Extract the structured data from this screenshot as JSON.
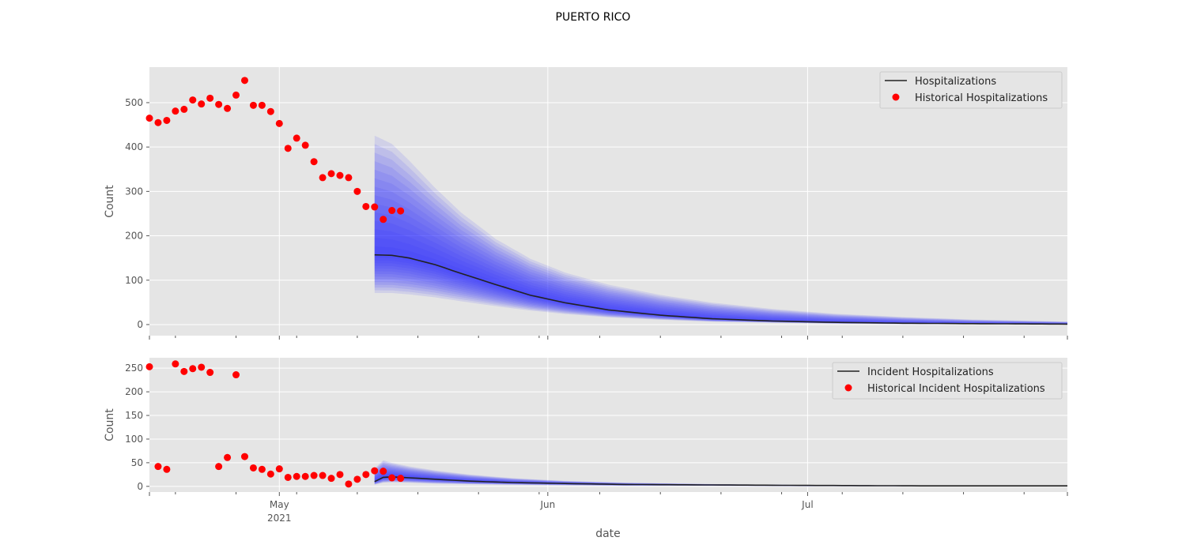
{
  "figure": {
    "title": "PUERTO RICO",
    "xlabel": "date"
  },
  "chart_data": [
    {
      "type": "line",
      "ylabel": "Count",
      "ylim": [
        -25,
        580
      ],
      "yticks": [
        0,
        100,
        200,
        300,
        400,
        500
      ],
      "grid": true,
      "legend_position": "top-right",
      "legend": [
        "Hospitalizations",
        "Historical Hospitalizations"
      ],
      "historical": {
        "name": "Historical Hospitalizations",
        "color": "#ff0000",
        "dates": [
          "2021-04-16",
          "2021-04-17",
          "2021-04-18",
          "2021-04-19",
          "2021-04-20",
          "2021-04-21",
          "2021-04-22",
          "2021-04-23",
          "2021-04-24",
          "2021-04-25",
          "2021-04-26",
          "2021-04-27",
          "2021-04-28",
          "2021-04-29",
          "2021-04-30",
          "2021-05-01",
          "2021-05-02",
          "2021-05-03",
          "2021-05-04",
          "2021-05-05",
          "2021-05-06",
          "2021-05-07",
          "2021-05-08",
          "2021-05-09",
          "2021-05-10",
          "2021-05-11",
          "2021-05-12",
          "2021-05-13",
          "2021-05-14",
          "2021-05-15"
        ],
        "values": [
          465,
          455,
          460,
          481,
          485,
          506,
          497,
          510,
          496,
          487,
          517,
          550,
          494,
          494,
          480,
          453,
          397,
          420,
          404,
          367,
          331,
          340,
          336,
          331,
          300,
          266,
          265,
          237,
          257,
          256
        ]
      },
      "forecast": {
        "name": "Hospitalizations",
        "color": "#222222",
        "band_color": "#3030ff",
        "dates": [
          "2021-05-12",
          "2021-05-14",
          "2021-05-16",
          "2021-05-19",
          "2021-05-22",
          "2021-05-26",
          "2021-05-30",
          "2021-06-03",
          "2021-06-08",
          "2021-06-14",
          "2021-06-20",
          "2021-06-27",
          "2021-07-04",
          "2021-07-12",
          "2021-07-20",
          "2021-07-31"
        ],
        "median": [
          157,
          156,
          150,
          135,
          115,
          90,
          66,
          49,
          33,
          21,
          13,
          8,
          5,
          3,
          2,
          1
        ],
        "upper": [
          445,
          425,
          385,
          320,
          262,
          200,
          154,
          122,
          94,
          70,
          52,
          37,
          26,
          18,
          12,
          7
        ],
        "lower": [
          65,
          65,
          62,
          56,
          48,
          38,
          29,
          22,
          15,
          10,
          6,
          4,
          2,
          1,
          1,
          0
        ]
      }
    },
    {
      "type": "line",
      "ylabel": "Count",
      "ylim": [
        -12,
        272
      ],
      "yticks": [
        0,
        50,
        100,
        150,
        200,
        250
      ],
      "grid": true,
      "legend_position": "top-right",
      "legend": [
        "Incident Hospitalizations",
        "Historical Incident Hospitalizations"
      ],
      "historical": {
        "name": "Historical Incident Hospitalizations",
        "color": "#ff0000",
        "dates": [
          "2021-04-16",
          "2021-04-17",
          "2021-04-18",
          "2021-04-19",
          "2021-04-20",
          "2021-04-21",
          "2021-04-22",
          "2021-04-23",
          "2021-04-24",
          "2021-04-25",
          "2021-04-26",
          "2021-04-27",
          "2021-04-28",
          "2021-04-29",
          "2021-04-30",
          "2021-05-01",
          "2021-05-02",
          "2021-05-03",
          "2021-05-04",
          "2021-05-05",
          "2021-05-06",
          "2021-05-07",
          "2021-05-08",
          "2021-05-09",
          "2021-05-10",
          "2021-05-11",
          "2021-05-12",
          "2021-05-13",
          "2021-05-14",
          "2021-05-15"
        ],
        "values": [
          253,
          42,
          36,
          259,
          243,
          249,
          252,
          241,
          42,
          61,
          236,
          63,
          39,
          36,
          26,
          37,
          19,
          21,
          21,
          23,
          23,
          17,
          25,
          5,
          15,
          25,
          33,
          32,
          18,
          17
        ]
      },
      "forecast": {
        "name": "Incident Hospitalizations",
        "color": "#222222",
        "band_color": "#3030ff",
        "dates": [
          "2021-05-12",
          "2021-05-13",
          "2021-05-14",
          "2021-05-16",
          "2021-05-19",
          "2021-05-23",
          "2021-05-28",
          "2021-06-03",
          "2021-06-10",
          "2021-06-20",
          "2021-07-01",
          "2021-07-15",
          "2021-07-31"
        ],
        "median": [
          10,
          19,
          20,
          18,
          15,
          11,
          8,
          6,
          4,
          3,
          2,
          1,
          1
        ],
        "upper": [
          40,
          58,
          52,
          44,
          35,
          26,
          18,
          12,
          8,
          5,
          3,
          2,
          1
        ],
        "lower": [
          3,
          7,
          8,
          7,
          5,
          4,
          3,
          2,
          1,
          1,
          0,
          0,
          0
        ]
      }
    }
  ],
  "x_axis": {
    "range": [
      "2021-04-16",
      "2021-07-31"
    ],
    "major_ticks": [
      {
        "date": "2021-05-01",
        "label": "May",
        "sublabel": "2021"
      },
      {
        "date": "2021-06-01",
        "label": "Jun",
        "sublabel": ""
      },
      {
        "date": "2021-07-01",
        "label": "Jul",
        "sublabel": ""
      }
    ],
    "minor_ticks": [
      "2021-04-19",
      "2021-04-26",
      "2021-05-03",
      "2021-05-10",
      "2021-05-17",
      "2021-05-24",
      "2021-05-31",
      "2021-06-07",
      "2021-06-14",
      "2021-06-21",
      "2021-06-28",
      "2021-07-05",
      "2021-07-12",
      "2021-07-19",
      "2021-07-26"
    ]
  }
}
